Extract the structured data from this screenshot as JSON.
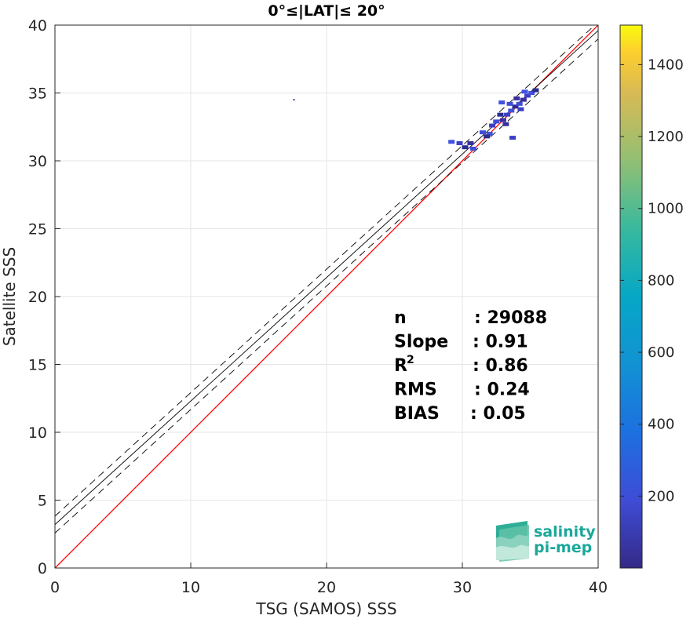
{
  "chart_data": {
    "type": "scatter",
    "title": "0°≤|LAT|≤ 20°",
    "xlabel": "TSG (SAMOS) SSS",
    "ylabel": "Satellite SSS",
    "xlim": [
      0,
      40
    ],
    "ylim": [
      0,
      40
    ],
    "xticks": [
      "0",
      "10",
      "20",
      "30",
      "40"
    ],
    "yticks": [
      "0",
      "5",
      "10",
      "15",
      "20",
      "25",
      "30",
      "35",
      "40"
    ],
    "grid": true,
    "colorbar": {
      "range": [
        0,
        1510
      ],
      "ticks": [
        "200",
        "400",
        "600",
        "800",
        "1000",
        "1200",
        "1400"
      ],
      "colormap": "parula"
    },
    "density_points": [
      {
        "x": 33.0,
        "y": 33.0
      },
      {
        "x": 33.3,
        "y": 33.4
      },
      {
        "x": 33.6,
        "y": 33.7
      },
      {
        "x": 33.9,
        "y": 34.0
      },
      {
        "x": 34.2,
        "y": 34.2
      },
      {
        "x": 34.5,
        "y": 34.5
      },
      {
        "x": 34.8,
        "y": 34.8
      },
      {
        "x": 35.1,
        "y": 35.0
      },
      {
        "x": 35.4,
        "y": 35.2
      },
      {
        "x": 33.5,
        "y": 34.2
      },
      {
        "x": 34.0,
        "y": 34.6
      },
      {
        "x": 34.3,
        "y": 33.8
      },
      {
        "x": 34.6,
        "y": 35.1
      },
      {
        "x": 32.8,
        "y": 33.4
      },
      {
        "x": 32.5,
        "y": 32.9
      },
      {
        "x": 33.2,
        "y": 32.7
      },
      {
        "x": 32.2,
        "y": 32.6
      },
      {
        "x": 32.0,
        "y": 32.0
      },
      {
        "x": 31.8,
        "y": 31.8
      },
      {
        "x": 31.5,
        "y": 32.1
      },
      {
        "x": 30.6,
        "y": 31.3
      },
      {
        "x": 29.8,
        "y": 31.3
      },
      {
        "x": 29.2,
        "y": 31.4
      },
      {
        "x": 30.2,
        "y": 31.0
      },
      {
        "x": 30.8,
        "y": 30.9
      },
      {
        "x": 17.6,
        "y": 34.5
      },
      {
        "x": 33.7,
        "y": 31.7
      },
      {
        "x": 32.9,
        "y": 34.3
      }
    ],
    "lines": [
      {
        "name": "identity",
        "slope": 1.0,
        "intercept": 0.0,
        "color": "#ff0000",
        "style": "solid"
      },
      {
        "name": "fit",
        "slope": 0.91,
        "intercept": 3.2,
        "color": "#000000",
        "style": "solid"
      },
      {
        "name": "fit-upper",
        "slope": 0.91,
        "intercept": 3.82,
        "color": "#000000",
        "style": "dashed"
      },
      {
        "name": "fit-lower",
        "slope": 0.91,
        "intercept": 2.58,
        "color": "#000000",
        "style": "dashed"
      }
    ],
    "stats": [
      {
        "label": "n",
        "sep": ": 29088"
      },
      {
        "label": "Slope",
        "sep": ": 0.91"
      },
      {
        "label": "R",
        "sup": "2",
        "sep": ": 0.86"
      },
      {
        "label": "RMS",
        "sep": ": 0.24"
      },
      {
        "label": "BIAS",
        "sep": ": 0.05"
      }
    ]
  },
  "logo": {
    "line1": "salinity",
    "line2": "pi-mep"
  },
  "colors": {
    "identity": "#ff0000",
    "fit": "#000000",
    "grid": "#e6e6e6",
    "logo": "#1aa89a"
  }
}
